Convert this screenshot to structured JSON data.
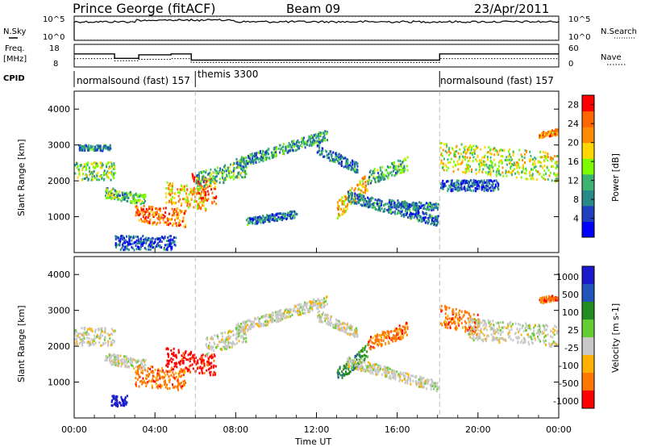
{
  "header": {
    "station": "Prince George (fitACF)",
    "beam": "Beam 09",
    "date": "23/Apr/2011"
  },
  "panels": {
    "nsky_label": "N.Sky",
    "nsearch_label": "N.Search",
    "freq_label_line1": "Freq.",
    "freq_label_line2": "[MHz]",
    "nave_label": "Nave",
    "cpid_label": "CPID",
    "noise_ticks_left": [
      "10^5",
      "10^0"
    ],
    "noise_ticks_right": [
      "10^5",
      "10^0"
    ],
    "freq_ticks_left": [
      "18",
      "8"
    ],
    "nave_ticks_right": [
      "60",
      "0"
    ]
  },
  "cpid_segments": [
    {
      "label": "normalsound (fast) 157",
      "start_h": 0.0,
      "end_h": 6.0
    },
    {
      "label": "themis 3300",
      "start_h": 6.0,
      "end_h": 18.1
    },
    {
      "label": "normalsound (fast) 157",
      "start_h": 18.1,
      "end_h": 24.0
    }
  ],
  "colors": {
    "power": [
      "#0000ff",
      "#2040c0",
      "#2a8a8a",
      "#3cb371",
      "#7cfc00",
      "#ffd700",
      "#ff8c00",
      "#ff6600",
      "#ff0000"
    ],
    "velocity": [
      "#1a1acc",
      "#2255bb",
      "#228b22",
      "#66cc33",
      "#c8c8c8",
      "#ffb000",
      "#ff7700",
      "#ff0000"
    ]
  },
  "chart_data": [
    {
      "type": "heatmap",
      "title": "Power",
      "ylabel": "Slant Range [km]",
      "xlabel": "Time UT",
      "x_tick_labels": [
        "00:00",
        "04:00",
        "08:00",
        "12:00",
        "16:00",
        "20:00",
        "00:00"
      ],
      "x_range_hours": [
        0,
        24
      ],
      "ylim": [
        0,
        4500
      ],
      "y_tick_labels": [
        "1000",
        "2000",
        "3000",
        "4000"
      ],
      "y_ticks": [
        1000,
        2000,
        3000,
        4000
      ],
      "colorbar_label": "Power [dB]",
      "colorbar_ticks": [
        "28",
        "24",
        "20",
        "16",
        "12",
        "8",
        "4"
      ],
      "colorbar_range": [
        0,
        30
      ],
      "scatter_tracks": [
        {
          "start_h": 0.0,
          "end_h": 2.0,
          "range_start": 2300,
          "range_end": 2300,
          "spread": 250,
          "value_mid": 14
        },
        {
          "start_h": 0.2,
          "end_h": 1.8,
          "range_start": 2950,
          "range_end": 2950,
          "spread": 80,
          "value_mid": 8
        },
        {
          "start_h": 1.5,
          "end_h": 3.5,
          "range_start": 1700,
          "range_end": 1500,
          "spread": 150,
          "value_mid": 12
        },
        {
          "start_h": 3.0,
          "end_h": 5.5,
          "range_start": 1100,
          "range_end": 1000,
          "spread": 250,
          "value_mid": 24
        },
        {
          "start_h": 4.5,
          "end_h": 6.5,
          "range_start": 1700,
          "range_end": 1500,
          "spread": 300,
          "value_mid": 20
        },
        {
          "start_h": 5.8,
          "end_h": 7.0,
          "range_start": 1900,
          "range_end": 1700,
          "spread": 350,
          "value_mid": 24
        },
        {
          "start_h": 6.0,
          "end_h": 8.5,
          "range_start": 2000,
          "range_end": 2400,
          "spread": 250,
          "value_mid": 12
        },
        {
          "start_h": 8.0,
          "end_h": 12.5,
          "range_start": 2500,
          "range_end": 3300,
          "spread": 150,
          "value_mid": 10
        },
        {
          "start_h": 8.5,
          "end_h": 11.0,
          "range_start": 900,
          "range_end": 1100,
          "spread": 100,
          "value_mid": 8
        },
        {
          "start_h": 12.0,
          "end_h": 14.0,
          "range_start": 2900,
          "range_end": 2400,
          "spread": 150,
          "value_mid": 8
        },
        {
          "start_h": 13.0,
          "end_h": 14.5,
          "range_start": 1200,
          "range_end": 2000,
          "spread": 250,
          "value_mid": 20
        },
        {
          "start_h": 13.5,
          "end_h": 18.0,
          "range_start": 1600,
          "range_end": 900,
          "spread": 150,
          "value_mid": 8
        },
        {
          "start_h": 14.5,
          "end_h": 16.5,
          "range_start": 2100,
          "range_end": 2500,
          "spread": 200,
          "value_mid": 12
        },
        {
          "start_h": 15.5,
          "end_h": 18.0,
          "range_start": 1400,
          "range_end": 1300,
          "spread": 100,
          "value_mid": 8
        },
        {
          "start_h": 18.1,
          "end_h": 24.0,
          "range_start": 2700,
          "range_end": 2400,
          "spread": 400,
          "value_mid": 16
        },
        {
          "start_h": 18.1,
          "end_h": 21.0,
          "range_start": 1900,
          "range_end": 1900,
          "spread": 150,
          "value_mid": 6
        },
        {
          "start_h": 23.0,
          "end_h": 24.0,
          "range_start": 3300,
          "range_end": 3400,
          "spread": 80,
          "value_mid": 22
        },
        {
          "start_h": 2.0,
          "end_h": 5.0,
          "range_start": 300,
          "range_end": 300,
          "spread": 200,
          "value_mid": 5
        }
      ]
    },
    {
      "type": "heatmap",
      "title": "Velocity",
      "ylabel": "Slant Range [km]",
      "xlabel": "Time UT",
      "x_tick_labels": [
        "00:00",
        "04:00",
        "08:00",
        "12:00",
        "16:00",
        "20:00",
        "00:00"
      ],
      "x_range_hours": [
        0,
        24
      ],
      "ylim": [
        0,
        4500
      ],
      "y_tick_labels": [
        "1000",
        "2000",
        "3000",
        "4000"
      ],
      "y_ticks": [
        1000,
        2000,
        3000,
        4000
      ],
      "colorbar_label": "Velocity [m s-1]",
      "colorbar_ticks": [
        "1000",
        "500",
        "100",
        "25",
        "-25",
        "-100",
        "-500",
        "-1000"
      ],
      "scatter_tracks": [
        {
          "start_h": 0.0,
          "end_h": 2.0,
          "range_start": 2300,
          "range_end": 2300,
          "spread": 250,
          "class": 4
        },
        {
          "start_h": 1.5,
          "end_h": 3.5,
          "range_start": 1700,
          "range_end": 1500,
          "spread": 150,
          "class": 4
        },
        {
          "start_h": 3.0,
          "end_h": 5.5,
          "range_start": 1200,
          "range_end": 1100,
          "spread": 300,
          "class": 6
        },
        {
          "start_h": 4.5,
          "end_h": 7.0,
          "range_start": 1700,
          "range_end": 1500,
          "spread": 300,
          "class": 7
        },
        {
          "start_h": 6.5,
          "end_h": 8.5,
          "range_start": 2000,
          "range_end": 2400,
          "spread": 250,
          "class": 4
        },
        {
          "start_h": 8.0,
          "end_h": 12.5,
          "range_start": 2500,
          "range_end": 3300,
          "spread": 150,
          "class": 4
        },
        {
          "start_h": 12.0,
          "end_h": 14.0,
          "range_start": 2900,
          "range_end": 2400,
          "spread": 150,
          "class": 4
        },
        {
          "start_h": 13.0,
          "end_h": 14.5,
          "range_start": 1200,
          "range_end": 1900,
          "spread": 200,
          "class": 2
        },
        {
          "start_h": 13.5,
          "end_h": 18.0,
          "range_start": 1600,
          "range_end": 900,
          "spread": 150,
          "class": 4
        },
        {
          "start_h": 14.5,
          "end_h": 16.5,
          "range_start": 2100,
          "range_end": 2500,
          "spread": 200,
          "class": 6
        },
        {
          "start_h": 18.1,
          "end_h": 20.0,
          "range_start": 2900,
          "range_end": 2600,
          "spread": 300,
          "class": 6
        },
        {
          "start_h": 19.5,
          "end_h": 24.0,
          "range_start": 2500,
          "range_end": 2300,
          "spread": 300,
          "class": 4
        },
        {
          "start_h": 23.0,
          "end_h": 24.0,
          "range_start": 3300,
          "range_end": 3400,
          "spread": 80,
          "class": 6
        },
        {
          "start_h": 1.8,
          "end_h": 2.6,
          "range_start": 500,
          "range_end": 500,
          "spread": 150,
          "class": 0
        }
      ]
    }
  ]
}
